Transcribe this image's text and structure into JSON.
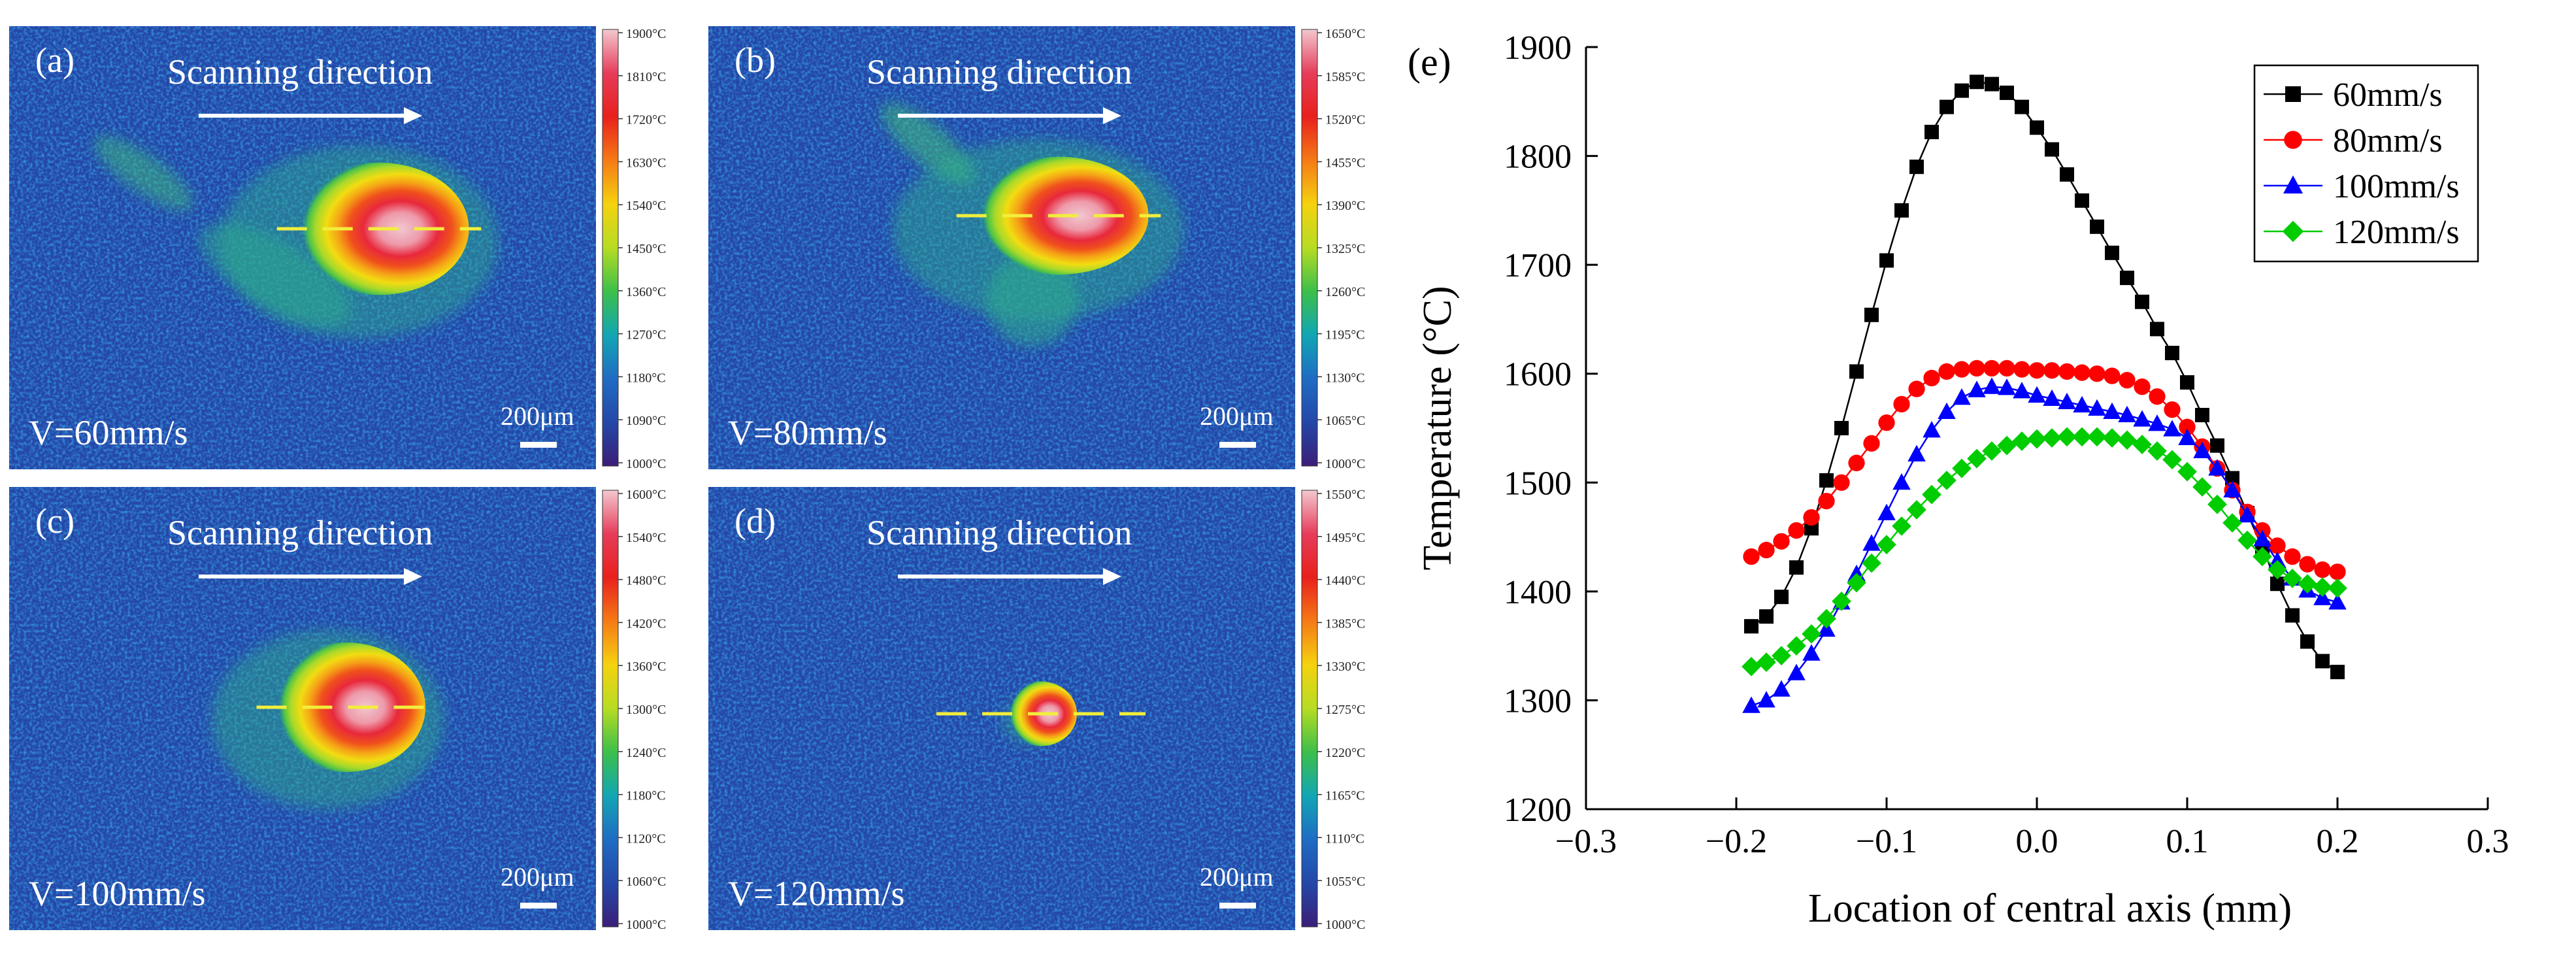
{
  "thermal_panels": [
    {
      "label": "(a)",
      "title": "Scanning direction",
      "speed_label": "V=60mm/s",
      "scale_label": "200μm",
      "colorbar_ticks": [
        "1900°C",
        "1810°C",
        "1720°C",
        "1630°C",
        "1540°C",
        "1450°C",
        "1360°C",
        "1270°C",
        "1180°C",
        "1090°C",
        "1000°C"
      ],
      "has_plume": true,
      "plume_strength": 0.9,
      "pool_scale": 1.0,
      "halo_scale": 1.0
    },
    {
      "label": "(b)",
      "title": "Scanning direction",
      "speed_label": "V=80mm/s",
      "scale_label": "200μm",
      "colorbar_ticks": [
        "1650°C",
        "1585°C",
        "1520°C",
        "1455°C",
        "1390°C",
        "1325°C",
        "1260°C",
        "1195°C",
        "1130°C",
        "1065°C",
        "1000°C"
      ],
      "has_plume": true,
      "plume_strength": 1.0,
      "pool_scale": 1.0,
      "halo_scale": 1.05
    },
    {
      "label": "(c)",
      "title": "Scanning direction",
      "speed_label": "V=100mm/s",
      "scale_label": "200μm",
      "colorbar_ticks": [
        "1600°C",
        "1540°C",
        "1480°C",
        "1420°C",
        "1360°C",
        "1300°C",
        "1240°C",
        "1180°C",
        "1120°C",
        "1060°C",
        "1000°C"
      ],
      "has_plume": false,
      "plume_strength": 0.0,
      "pool_scale": 1.0,
      "halo_scale": 0.95
    },
    {
      "label": "(d)",
      "title": "Scanning direction",
      "speed_label": "V=120mm/s",
      "scale_label": "200μm",
      "colorbar_ticks": [
        "1550°C",
        "1495°C",
        "1440°C",
        "1385°C",
        "1330°C",
        "1275°C",
        "1220°C",
        "1165°C",
        "1110°C",
        "1055°C",
        "1000°C"
      ],
      "has_plume": false,
      "plume_strength": 0.0,
      "pool_scale": 0.45,
      "halo_scale": 0.5
    }
  ],
  "colors": {
    "thermal_background": "#2447a8",
    "colormap": [
      "#f3c8cf",
      "#e63c5a",
      "#e8201c",
      "#f57a16",
      "#f5d20f",
      "#b6dc23",
      "#3cbf4a",
      "#12a6b4",
      "#1f6cc4",
      "#2447a8",
      "#3b1e78"
    ],
    "centerline": "#f2ee3c",
    "series": [
      "#000000",
      "#ff0000",
      "#0000ff",
      "#00cc00"
    ]
  },
  "chart_data": {
    "type": "line",
    "panel_label": "(e)",
    "title": "",
    "xlabel": "Location of central axis (mm)",
    "ylabel": "Temperature (°C)",
    "xlim": [
      -0.3,
      0.3
    ],
    "ylim": [
      1200,
      1900
    ],
    "xticks": [
      -0.3,
      -0.2,
      -0.1,
      0.0,
      0.1,
      0.2,
      0.3
    ],
    "xtick_labels": [
      "−0.3",
      "−0.2",
      "−0.1",
      "0.0",
      "0.1",
      "0.2",
      "0.3"
    ],
    "yticks": [
      1200,
      1300,
      1400,
      1500,
      1600,
      1700,
      1800,
      1900
    ],
    "ytick_labels": [
      "1200",
      "1300",
      "1400",
      "1500",
      "1600",
      "1700",
      "1800",
      "1900"
    ],
    "legend_position": "top-right",
    "series": [
      {
        "name": "60mm/s",
        "marker": "square",
        "x": [
          -0.19,
          -0.18,
          -0.17,
          -0.16,
          -0.15,
          -0.14,
          -0.13,
          -0.12,
          -0.11,
          -0.1,
          -0.09,
          -0.08,
          -0.07,
          -0.06,
          -0.05,
          -0.04,
          -0.03,
          -0.02,
          -0.01,
          0.0,
          0.01,
          0.02,
          0.03,
          0.04,
          0.05,
          0.06,
          0.07,
          0.08,
          0.09,
          0.1,
          0.11,
          0.12,
          0.13,
          0.14,
          0.15,
          0.16,
          0.17,
          0.18,
          0.19,
          0.2
        ],
        "values": [
          1368,
          1377,
          1395,
          1422,
          1458,
          1502,
          1550,
          1602,
          1654,
          1704,
          1750,
          1790,
          1822,
          1845,
          1860,
          1868,
          1866,
          1858,
          1845,
          1826,
          1806,
          1783,
          1759,
          1735,
          1711,
          1688,
          1666,
          1641,
          1619,
          1592,
          1562,
          1534,
          1504,
          1472,
          1440,
          1407,
          1378,
          1354,
          1336,
          1326
        ]
      },
      {
        "name": "80mm/s",
        "marker": "circle",
        "x": [
          -0.19,
          -0.18,
          -0.17,
          -0.16,
          -0.15,
          -0.14,
          -0.13,
          -0.12,
          -0.11,
          -0.1,
          -0.09,
          -0.08,
          -0.07,
          -0.06,
          -0.05,
          -0.04,
          -0.03,
          -0.02,
          -0.01,
          0.0,
          0.01,
          0.02,
          0.03,
          0.04,
          0.05,
          0.06,
          0.07,
          0.08,
          0.09,
          0.1,
          0.11,
          0.12,
          0.13,
          0.14,
          0.15,
          0.16,
          0.17,
          0.18,
          0.19,
          0.2
        ],
        "values": [
          1432,
          1438,
          1446,
          1456,
          1468,
          1483,
          1500,
          1518,
          1536,
          1555,
          1572,
          1586,
          1596,
          1602,
          1604,
          1605,
          1605,
          1605,
          1604,
          1603,
          1603,
          1602,
          1601,
          1600,
          1598,
          1594,
          1588,
          1579,
          1567,
          1551,
          1533,
          1513,
          1493,
          1473,
          1456,
          1442,
          1432,
          1425,
          1420,
          1418
        ]
      },
      {
        "name": "100mm/s",
        "marker": "triangle",
        "x": [
          -0.19,
          -0.18,
          -0.17,
          -0.16,
          -0.15,
          -0.14,
          -0.13,
          -0.12,
          -0.11,
          -0.1,
          -0.09,
          -0.08,
          -0.07,
          -0.06,
          -0.05,
          -0.04,
          -0.03,
          -0.02,
          -0.01,
          0.0,
          0.01,
          0.02,
          0.03,
          0.04,
          0.05,
          0.06,
          0.07,
          0.08,
          0.09,
          0.1,
          0.11,
          0.12,
          0.13,
          0.14,
          0.15,
          0.16,
          0.17,
          0.18,
          0.19,
          0.2
        ],
        "values": [
          1295,
          1300,
          1310,
          1325,
          1343,
          1365,
          1390,
          1416,
          1444,
          1472,
          1500,
          1526,
          1548,
          1565,
          1578,
          1585,
          1588,
          1587,
          1584,
          1580,
          1577,
          1574,
          1571,
          1568,
          1565,
          1562,
          1558,
          1554,
          1549,
          1541,
          1529,
          1513,
          1493,
          1470,
          1448,
          1428,
          1412,
          1401,
          1394,
          1390
        ]
      },
      {
        "name": "120mm/s",
        "marker": "diamond",
        "x": [
          -0.19,
          -0.18,
          -0.17,
          -0.16,
          -0.15,
          -0.14,
          -0.13,
          -0.12,
          -0.11,
          -0.1,
          -0.09,
          -0.08,
          -0.07,
          -0.06,
          -0.05,
          -0.04,
          -0.03,
          -0.02,
          -0.01,
          0.0,
          0.01,
          0.02,
          0.03,
          0.04,
          0.05,
          0.06,
          0.07,
          0.08,
          0.09,
          0.1,
          0.11,
          0.12,
          0.13,
          0.14,
          0.15,
          0.16,
          0.17,
          0.18,
          0.19,
          0.2
        ],
        "values": [
          1331,
          1335,
          1341,
          1350,
          1361,
          1375,
          1391,
          1408,
          1426,
          1443,
          1460,
          1475,
          1489,
          1502,
          1513,
          1522,
          1529,
          1534,
          1538,
          1540,
          1541,
          1542,
          1542,
          1542,
          1541,
          1539,
          1535,
          1529,
          1521,
          1510,
          1496,
          1480,
          1463,
          1447,
          1432,
          1420,
          1412,
          1407,
          1404,
          1403
        ]
      }
    ]
  }
}
